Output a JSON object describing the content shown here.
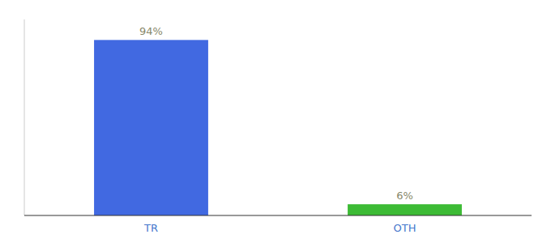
{
  "chart_data": {
    "type": "bar",
    "categories": [
      "TR",
      "OTH"
    ],
    "values": [
      94,
      6
    ],
    "value_labels": [
      "94%",
      "6%"
    ],
    "colors": [
      "#4169e1",
      "#3dbb35"
    ],
    "ylim": [
      0,
      105
    ],
    "data_labels": true,
    "tick_labels": "x"
  }
}
